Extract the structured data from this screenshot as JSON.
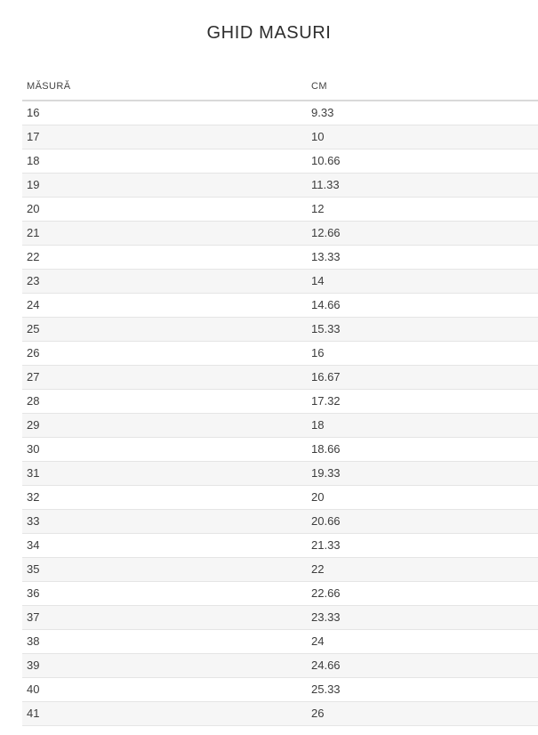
{
  "page": {
    "title": "GHID MASURI"
  },
  "table": {
    "headers": [
      "MĂSURĂ",
      "CM"
    ],
    "rows": [
      {
        "size": "16",
        "cm": "9.33"
      },
      {
        "size": "17",
        "cm": "10"
      },
      {
        "size": "18",
        "cm": "10.66"
      },
      {
        "size": "19",
        "cm": "11.33"
      },
      {
        "size": "20",
        "cm": "12"
      },
      {
        "size": "21",
        "cm": "12.66"
      },
      {
        "size": "22",
        "cm": "13.33"
      },
      {
        "size": "23",
        "cm": "14"
      },
      {
        "size": "24",
        "cm": "14.66"
      },
      {
        "size": "25",
        "cm": "15.33"
      },
      {
        "size": "26",
        "cm": "16"
      },
      {
        "size": "27",
        "cm": "16.67"
      },
      {
        "size": "28",
        "cm": "17.32"
      },
      {
        "size": "29",
        "cm": "18"
      },
      {
        "size": "30",
        "cm": "18.66"
      },
      {
        "size": "31",
        "cm": "19.33"
      },
      {
        "size": "32",
        "cm": "20"
      },
      {
        "size": "33",
        "cm": "20.66"
      },
      {
        "size": "34",
        "cm": "21.33"
      },
      {
        "size": "35",
        "cm": "22"
      },
      {
        "size": "36",
        "cm": "22.66"
      },
      {
        "size": "37",
        "cm": "23.33"
      },
      {
        "size": "38",
        "cm": "24"
      },
      {
        "size": "39",
        "cm": "24.66"
      },
      {
        "size": "40",
        "cm": "25.33"
      },
      {
        "size": "41",
        "cm": "26"
      }
    ]
  },
  "colors": {
    "row_alt_bg": "#f6f6f6",
    "row_border": "#e5e5e5",
    "header_border": "#d9d9d9",
    "text": "#3c3c3c",
    "title": "#2d2d2d"
  }
}
